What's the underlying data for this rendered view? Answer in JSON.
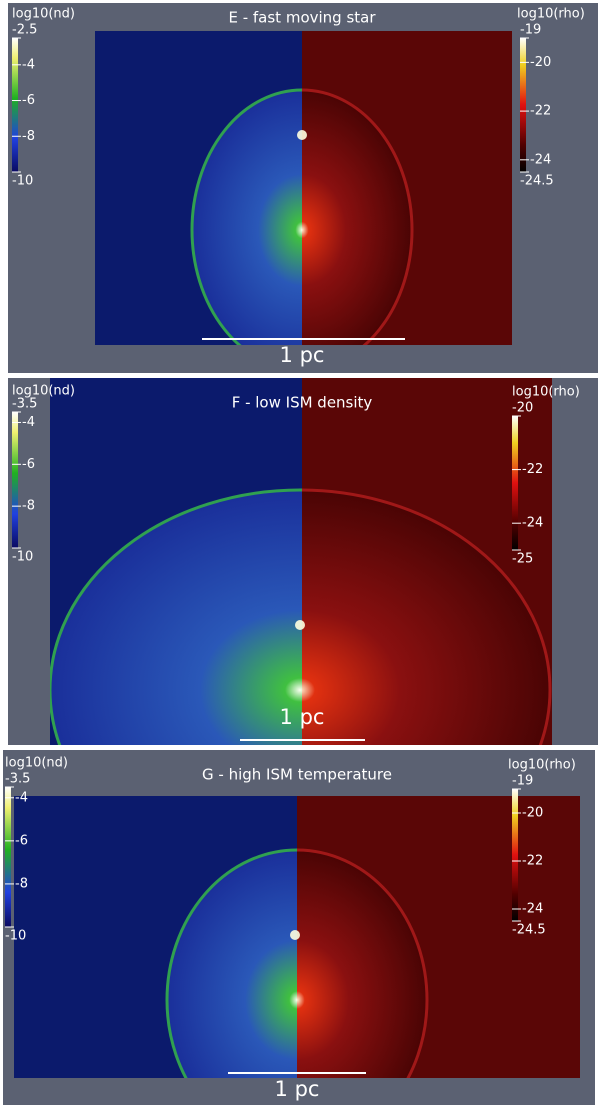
{
  "panels": [
    {
      "title": "E - fast moving star",
      "scale_label": "1 pc",
      "left_colorbar": {
        "label": "log10(nd)",
        "range": [
          -10,
          -2.5
        ],
        "ticks": [
          -2.5,
          -4,
          -6,
          -8,
          -10
        ]
      },
      "right_colorbar": {
        "label": "log10(rho)",
        "range": [
          -24.5,
          -19
        ],
        "ticks": [
          -19,
          -20,
          -22,
          -24,
          -24.5
        ]
      }
    },
    {
      "title": "F - low ISM density",
      "scale_label": "1 pc",
      "left_colorbar": {
        "label": "log10(nd)",
        "range": [
          -10,
          -3.5
        ],
        "ticks": [
          -3.5,
          -4,
          -6,
          -8,
          -10
        ]
      },
      "right_colorbar": {
        "label": "log10(rho)",
        "range": [
          -25,
          -20
        ],
        "ticks": [
          -20,
          -22,
          -24,
          -25
        ]
      }
    },
    {
      "title": "G - high ISM temperature",
      "scale_label": "1 pc",
      "left_colorbar": {
        "label": "log10(nd)",
        "range": [
          -10,
          -3.5
        ],
        "ticks": [
          -3.5,
          -4,
          -6,
          -8,
          -10
        ]
      },
      "right_colorbar": {
        "label": "log10(rho)",
        "range": [
          -24.5,
          -19
        ],
        "ticks": [
          -19,
          -20,
          -22,
          -24,
          -24.5
        ]
      }
    }
  ]
}
